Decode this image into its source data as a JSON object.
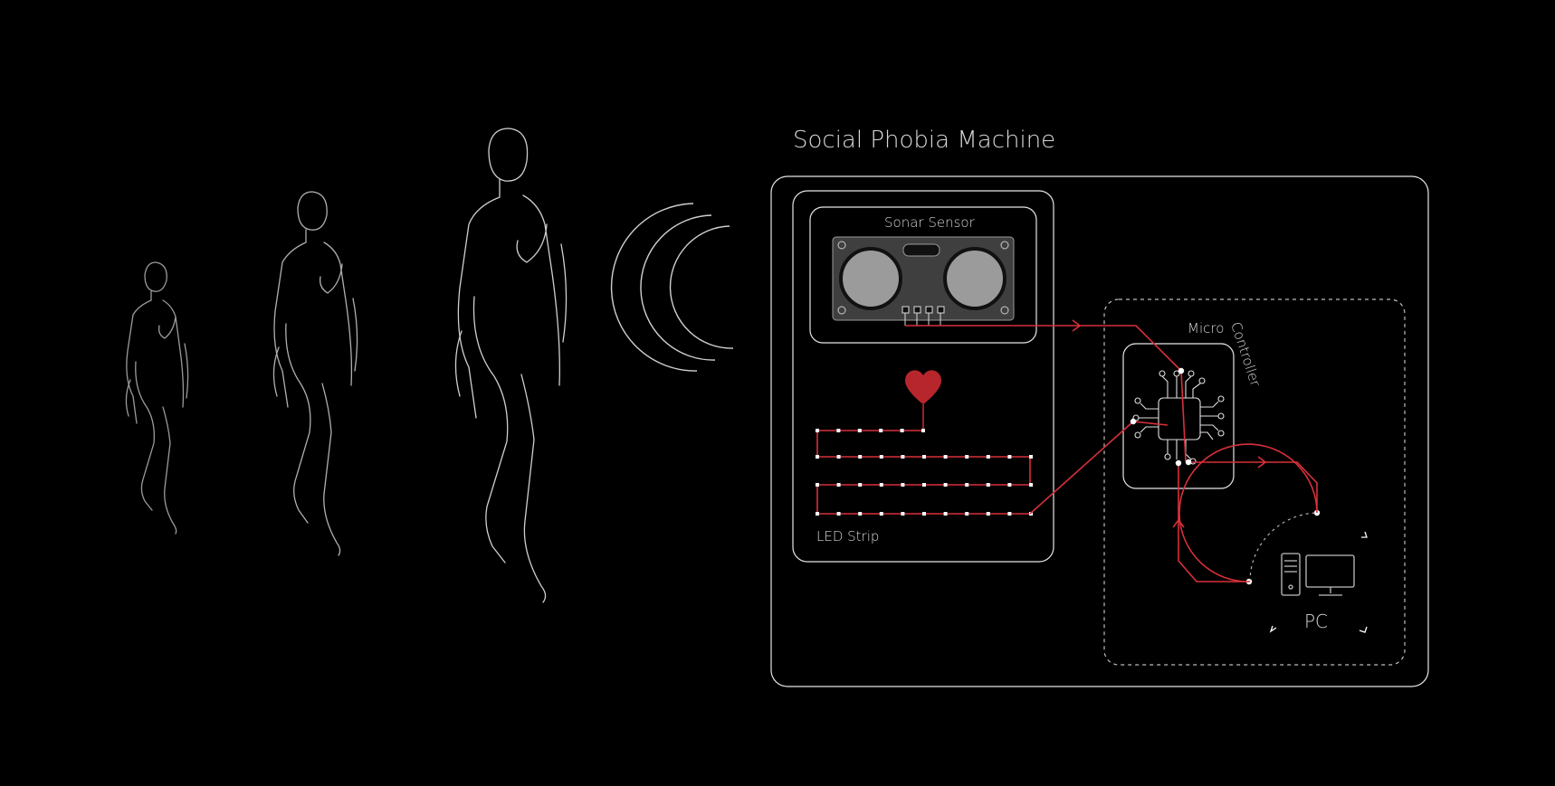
{
  "title": "Social Phobia Machine",
  "labels": {
    "sonar": "Sonar Sensor",
    "led": "LED Strip",
    "micro": "Micro",
    "controller": "Controller",
    "pc": "PC"
  },
  "colors": {
    "background": "#000000",
    "line": "#e6e6e6",
    "accent_red": "#d8303a",
    "heart": "#b8262d"
  },
  "icons": [
    "walking-figure-icon",
    "sound-wave-icon",
    "sonar-sensor-icon",
    "heart-icon",
    "chip-icon",
    "desktop-pc-icon"
  ]
}
